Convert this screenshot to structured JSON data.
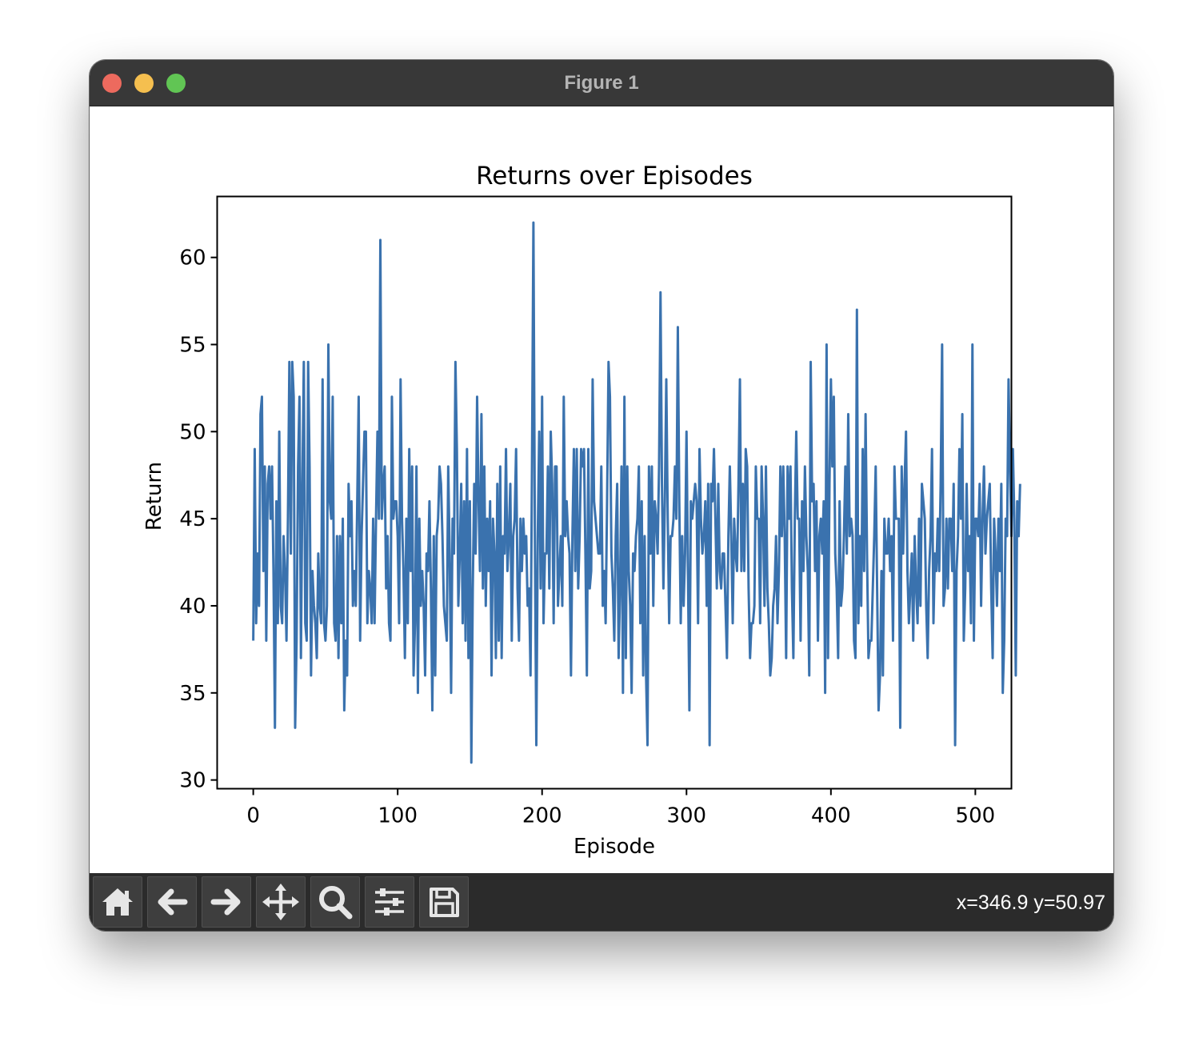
{
  "window": {
    "title": "Figure 1"
  },
  "toolbar": {
    "buttons": [
      {
        "name": "home",
        "icon": "home-icon"
      },
      {
        "name": "back",
        "icon": "arrow-left-icon"
      },
      {
        "name": "forward",
        "icon": "arrow-right-icon"
      },
      {
        "name": "pan",
        "icon": "move-icon"
      },
      {
        "name": "zoom",
        "icon": "search-icon"
      },
      {
        "name": "configure-subplots",
        "icon": "sliders-icon"
      },
      {
        "name": "save",
        "icon": "floppy-disk-icon"
      }
    ],
    "coords": "x=346.9 y=50.97"
  },
  "chart_data": {
    "type": "line",
    "title": "Returns over Episodes",
    "xlabel": "Episode",
    "ylabel": "Return",
    "xlim": [
      -25,
      525
    ],
    "ylim": [
      29.5,
      63.5
    ],
    "xticks": [
      0,
      100,
      200,
      300,
      400,
      500
    ],
    "yticks": [
      30,
      35,
      40,
      45,
      50,
      55,
      60
    ],
    "grid": false,
    "color": "#3a72ae",
    "series": [
      {
        "x_start": 0,
        "values": [
          38,
          49,
          39,
          43,
          40,
          51,
          52,
          42,
          48,
          38,
          47,
          48,
          45,
          48,
          42,
          33,
          46,
          39,
          50,
          40,
          39,
          44,
          42,
          38,
          45,
          54,
          43,
          54,
          52,
          33,
          38,
          48,
          52,
          37,
          47,
          54,
          39,
          38,
          54,
          48,
          36,
          42,
          40,
          39,
          37,
          43,
          40,
          39,
          53,
          39,
          38,
          40,
          55,
          46,
          45,
          52,
          39,
          38,
          44,
          37,
          44,
          39,
          45,
          34,
          38,
          36,
          47,
          44,
          46,
          40,
          42,
          40,
          46,
          52,
          38,
          44,
          47,
          50,
          50,
          39,
          42,
          41,
          39,
          45,
          39,
          45,
          50,
          45,
          61,
          45,
          47,
          48,
          41,
          44,
          39,
          38,
          52,
          45,
          46,
          46,
          44,
          39,
          53,
          45,
          42,
          37,
          45,
          39,
          49,
          42,
          48,
          36,
          39,
          48,
          35,
          45,
          40,
          42,
          40,
          36,
          43,
          42,
          46,
          41,
          34,
          44,
          36,
          44,
          45,
          48,
          47,
          44,
          40,
          39,
          38,
          48,
          43,
          35,
          45,
          43,
          54,
          49,
          40,
          43,
          47,
          39,
          46,
          38,
          49,
          37,
          46,
          31,
          41,
          47,
          43,
          52,
          46,
          42,
          51,
          41,
          48,
          40,
          45,
          42,
          46,
          36,
          45,
          43,
          37,
          47,
          38,
          48,
          37,
          44,
          43,
          49,
          42,
          44,
          47,
          38,
          44,
          45,
          49,
          41,
          38,
          45,
          42,
          45,
          43,
          44,
          40,
          41,
          36,
          48,
          62,
          44,
          32,
          44,
          50,
          41,
          52,
          39,
          43,
          43,
          48,
          41,
          50,
          47,
          39,
          48,
          48,
          40,
          42,
          44,
          40,
          52,
          44,
          46,
          44,
          43,
          36,
          44,
          49,
          42,
          49,
          41,
          44,
          49,
          48,
          49,
          43,
          36,
          49,
          41,
          42,
          53,
          46,
          45,
          44,
          43,
          43,
          48,
          40,
          42,
          39,
          46,
          54,
          52,
          43,
          41,
          38,
          44,
          47,
          37,
          41,
          48,
          35,
          52,
          37,
          48,
          42,
          40,
          35,
          43,
          42,
          44,
          45,
          48,
          39,
          46,
          36,
          44,
          36,
          32,
          48,
          43,
          48,
          40,
          46,
          45,
          43,
          48,
          58,
          47,
          41,
          46,
          53,
          45,
          39,
          44,
          44,
          45,
          48,
          45,
          56,
          46,
          39,
          44,
          40,
          43,
          50,
          42,
          34,
          46,
          45,
          46,
          47,
          46,
          39,
          49,
          45,
          43,
          44,
          46,
          40,
          47,
          32,
          47,
          46,
          49,
          45,
          41,
          47,
          42,
          41,
          43,
          43,
          40,
          37,
          44,
          48,
          44,
          39,
          45,
          43,
          42,
          47,
          53,
          42,
          47,
          42,
          49,
          48,
          41,
          37,
          39,
          39,
          40,
          48,
          45,
          45,
          39,
          48,
          45,
          40,
          48,
          41,
          39,
          36,
          37,
          40,
          41,
          44,
          39,
          42,
          48,
          44,
          48,
          44,
          37,
          48,
          45,
          48,
          41,
          37,
          45,
          50,
          45,
          45,
          38,
          46,
          42,
          48,
          44,
          42,
          36,
          54,
          46,
          47,
          42,
          46,
          38,
          44,
          45,
          43,
          46,
          35,
          55,
          37,
          47,
          53,
          48,
          52,
          43,
          41,
          37,
          46,
          40,
          41,
          44,
          48,
          43,
          51,
          44,
          45,
          44,
          38,
          37,
          57,
          39,
          44,
          40,
          49,
          42,
          51,
          43,
          37,
          38,
          38,
          41,
          44,
          48,
          41,
          34,
          36,
          42,
          36,
          45,
          43,
          43,
          45,
          42,
          44,
          38,
          48,
          45,
          45,
          45,
          33,
          48,
          43,
          47,
          50,
          42,
          39,
          41,
          43,
          38,
          44,
          41,
          39,
          45,
          40,
          47,
          46,
          45,
          40,
          37,
          42,
          44,
          49,
          39,
          43,
          42,
          45,
          42,
          47,
          55,
          40,
          41,
          45,
          41,
          45,
          45,
          42,
          47,
          32,
          42,
          44,
          49,
          45,
          51,
          38,
          41,
          47,
          42,
          44,
          39,
          55,
          38,
          45,
          45,
          44,
          47,
          40,
          45,
          48,
          43,
          45,
          46,
          47,
          41,
          37,
          45,
          43,
          40,
          45,
          42,
          47,
          35,
          38,
          45,
          44,
          53,
          48,
          44,
          49,
          45,
          36,
          46,
          44,
          47
        ]
      }
    ]
  }
}
